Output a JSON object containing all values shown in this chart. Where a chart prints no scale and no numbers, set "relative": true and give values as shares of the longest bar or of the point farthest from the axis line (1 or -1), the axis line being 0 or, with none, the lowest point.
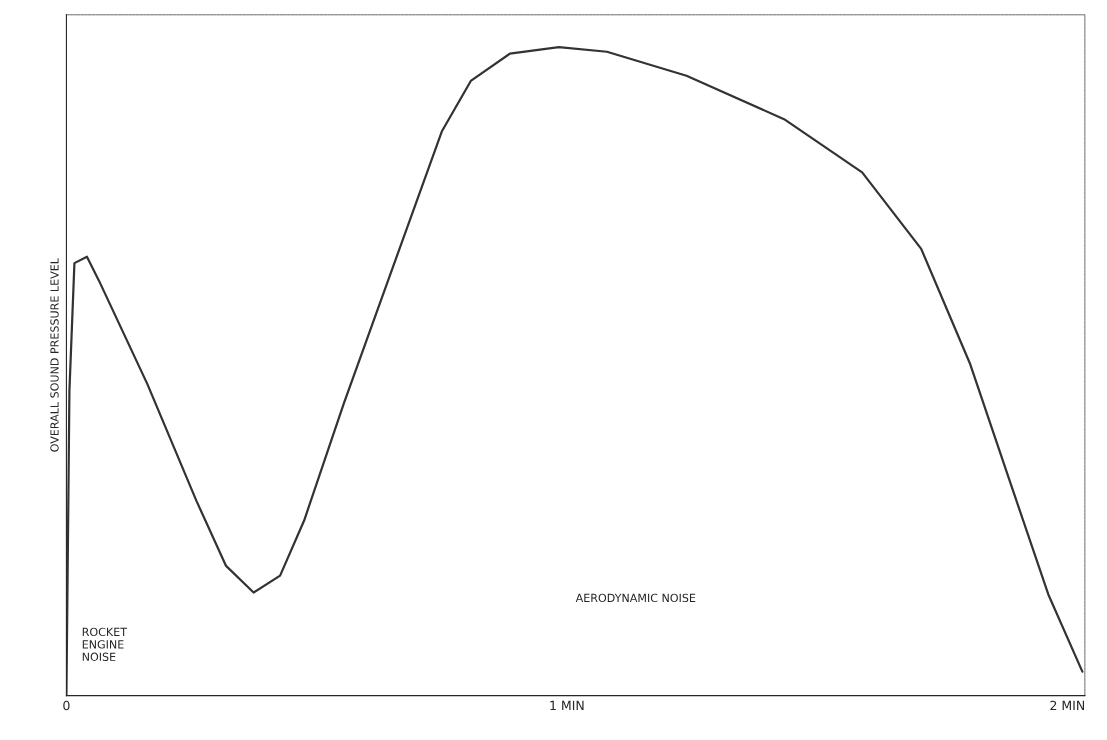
{
  "chart_data": {
    "type": "line",
    "relative": true,
    "ylabel": "OVERALL SOUND PRESSURE LEVEL",
    "x": [
      0,
      0.006,
      0.016,
      0.041,
      0.065,
      0.162,
      0.26,
      0.319,
      0.374,
      0.427,
      0.475,
      0.554,
      0.652,
      0.75,
      0.808,
      0.886,
      0.984,
      1.08,
      1.239,
      1.434,
      1.59,
      1.708,
      1.806,
      1.884,
      1.962,
      2.03
    ],
    "values": [
      0,
      0.47,
      0.667,
      0.677,
      0.64,
      0.48,
      0.3,
      0.2,
      0.159,
      0.185,
      0.27,
      0.45,
      0.66,
      0.87,
      0.948,
      0.99,
      1.0,
      0.993,
      0.956,
      0.889,
      0.807,
      0.689,
      0.511,
      0.333,
      0.156,
      0.037
    ],
    "color": "#333333",
    "xlim": [
      0,
      2.035
    ],
    "xticks": [
      0,
      {
        "value": 1,
        "label": "1 MIN"
      },
      {
        "value": 2,
        "label": "2 MIN"
      }
    ],
    "annotations": [
      "ROCKET\nENGINE\nNOISE",
      "AERODYNAMIC NOISE"
    ],
    "grid": false,
    "legend": false,
    "marker": "none",
    "line_style": "solid"
  }
}
